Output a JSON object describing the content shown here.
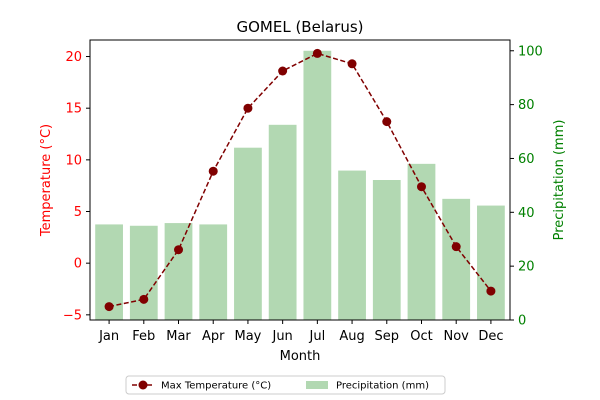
{
  "chart_data": {
    "type": "bar+line",
    "title": "GOMEL (Belarus)",
    "xlabel": "Month",
    "categories": [
      "Jan",
      "Feb",
      "Mar",
      "Apr",
      "May",
      "Jun",
      "Jul",
      "Aug",
      "Sep",
      "Oct",
      "Nov",
      "Dec"
    ],
    "left_axis": {
      "label": "Temperature (°C)",
      "color": "#ff0000",
      "range": [
        -5.5,
        21.6
      ],
      "ticks": [
        -5,
        0,
        5,
        10,
        15,
        20
      ]
    },
    "right_axis": {
      "label": "Precipitation (mm)",
      "color": "#008000",
      "range": [
        0,
        104
      ],
      "ticks": [
        0,
        20,
        40,
        60,
        80,
        100
      ]
    },
    "series": [
      {
        "name": "Max Temperature (°C)",
        "kind": "line",
        "axis": "left",
        "color": "#800000",
        "values": [
          -4.2,
          -3.5,
          1.3,
          8.9,
          15.0,
          18.6,
          20.3,
          19.3,
          13.7,
          7.4,
          1.6,
          -2.7
        ]
      },
      {
        "name": "Precipitation (mm)",
        "kind": "bar",
        "axis": "right",
        "color": "#b2d8b2",
        "values": [
          35.5,
          35,
          36,
          35.5,
          64,
          72.5,
          100,
          55.5,
          52,
          58,
          45,
          42.5
        ]
      }
    ],
    "grid": false,
    "legend_position": "bottom-center"
  }
}
